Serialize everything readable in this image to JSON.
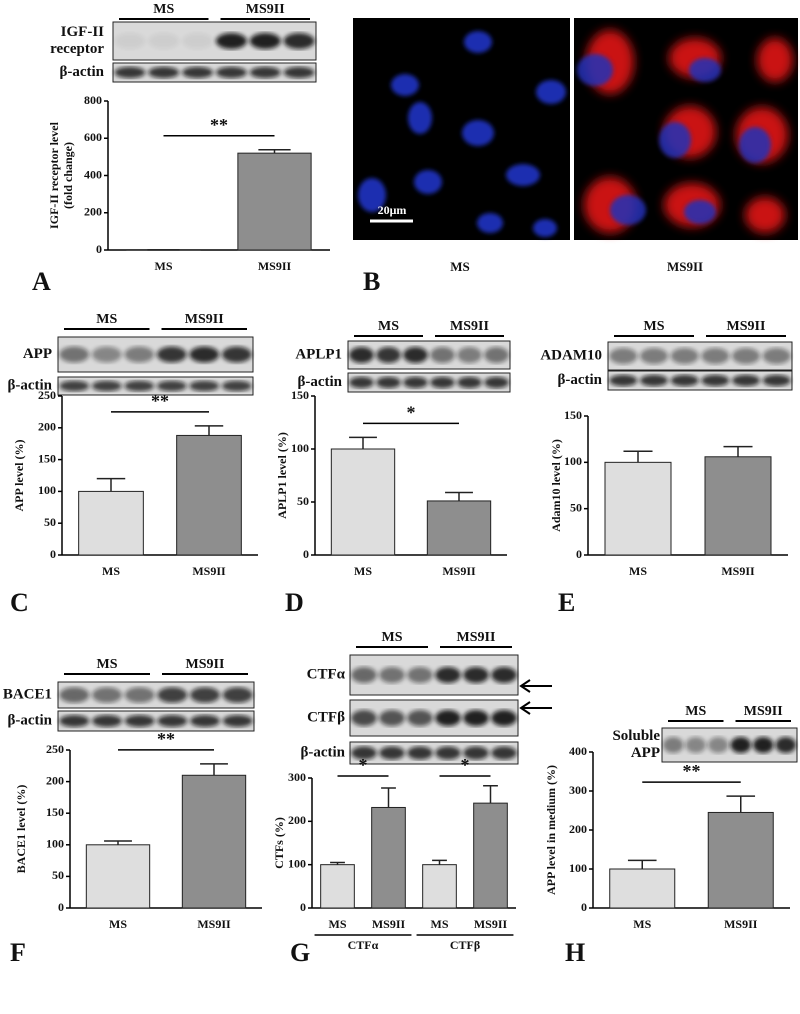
{
  "chart_data": [
    {
      "type": "bar",
      "panel": "A",
      "blot": {
        "groups": [
          "MS",
          "MS9II"
        ],
        "rows": [
          [
            "IGF-II",
            "receptor"
          ],
          [
            "β-actin"
          ]
        ]
      },
      "ylabel": [
        "IGF-II receptor level",
        "(fold change)"
      ],
      "categories": [
        "MS",
        "MS9II"
      ],
      "values": [
        1,
        520
      ],
      "errors": [
        0,
        18
      ],
      "colors": [
        "#dedede",
        "#8e8e8e"
      ],
      "ylim": [
        0,
        800
      ],
      "yticks": [
        0,
        200,
        400,
        600,
        800
      ],
      "annotations": [
        "**"
      ]
    },
    {
      "type": "bar",
      "panel": "C",
      "blot": {
        "groups": [
          "MS",
          "MS9II"
        ],
        "rows": [
          [
            "APP"
          ],
          [
            "β-actin"
          ]
        ]
      },
      "ylabel": [
        "APP level (%)"
      ],
      "categories": [
        "MS",
        "MS9II"
      ],
      "values": [
        100,
        188
      ],
      "errors": [
        20,
        15
      ],
      "colors": [
        "#dedede",
        "#8e8e8e"
      ],
      "ylim": [
        0,
        250
      ],
      "yticks": [
        0,
        50,
        100,
        150,
        200,
        250
      ],
      "annotations": [
        "**"
      ]
    },
    {
      "type": "bar",
      "panel": "D",
      "blot": {
        "groups": [
          "MS",
          "MS9II"
        ],
        "rows": [
          [
            "APLP1"
          ],
          [
            "β-actin"
          ]
        ]
      },
      "ylabel": [
        "APLP1 level (%)"
      ],
      "categories": [
        "MS",
        "MS9II"
      ],
      "values": [
        100,
        51
      ],
      "errors": [
        11,
        8
      ],
      "colors": [
        "#dedede",
        "#8e8e8e"
      ],
      "ylim": [
        0,
        150
      ],
      "yticks": [
        0,
        50,
        100,
        150
      ],
      "annotations": [
        "*"
      ]
    },
    {
      "type": "bar",
      "panel": "E",
      "blot": {
        "groups": [
          "MS",
          "MS9II"
        ],
        "rows": [
          [
            "ADAM10"
          ],
          [
            "β-actin"
          ]
        ]
      },
      "ylabel": [
        "Adam10 level (%)"
      ],
      "categories": [
        "MS",
        "MS9II"
      ],
      "values": [
        100,
        106
      ],
      "errors": [
        12,
        11
      ],
      "colors": [
        "#dedede",
        "#8e8e8e"
      ],
      "ylim": [
        0,
        150
      ],
      "yticks": [
        0,
        50,
        100,
        150
      ],
      "annotations": []
    },
    {
      "type": "bar",
      "panel": "F",
      "blot": {
        "groups": [
          "MS",
          "MS9II"
        ],
        "rows": [
          [
            "BACE1"
          ],
          [
            "β-actin"
          ]
        ]
      },
      "ylabel": [
        "BACE1 level (%)"
      ],
      "categories": [
        "MS",
        "MS9II"
      ],
      "values": [
        100,
        210
      ],
      "errors": [
        6,
        18
      ],
      "colors": [
        "#dedede",
        "#8e8e8e"
      ],
      "ylim": [
        0,
        250
      ],
      "yticks": [
        0,
        50,
        100,
        150,
        200,
        250
      ],
      "annotations": [
        "**"
      ]
    },
    {
      "type": "bar",
      "panel": "G",
      "blot": {
        "groups": [
          "MS",
          "MS9II"
        ],
        "rows": [
          [
            "CTFα"
          ],
          [
            "CTFβ"
          ],
          [
            "β-actin"
          ]
        ]
      },
      "ylabel": [
        "CTFs (%)"
      ],
      "categories": [
        "MS",
        "MS9II",
        "MS",
        "MS9II"
      ],
      "groups": [
        "CTFα",
        "CTFβ"
      ],
      "values": [
        100,
        232,
        100,
        242
      ],
      "errors": [
        5,
        45,
        10,
        40
      ],
      "colors": [
        "#dedede",
        "#8e8e8e",
        "#dedede",
        "#8e8e8e"
      ],
      "ylim": [
        0,
        300
      ],
      "yticks": [
        0,
        100,
        200,
        300
      ],
      "annotations": [
        "*",
        "*"
      ]
    },
    {
      "type": "bar",
      "panel": "H",
      "blot": {
        "groups": [
          "MS",
          "MS9II"
        ],
        "rows": [
          [
            "Soluble",
            "APP"
          ]
        ]
      },
      "ylabel": [
        "APP level in medium (%)"
      ],
      "categories": [
        "MS",
        "MS9II"
      ],
      "values": [
        100,
        245
      ],
      "errors": [
        22,
        42
      ],
      "colors": [
        "#dedede",
        "#8e8e8e"
      ],
      "ylim": [
        0,
        400
      ],
      "yticks": [
        0,
        100,
        200,
        300,
        400
      ],
      "annotations": [
        "**"
      ]
    }
  ],
  "image_panel": {
    "panel": "B",
    "labels": [
      "MS",
      "MS9II"
    ],
    "scale_bar": "20μm"
  }
}
